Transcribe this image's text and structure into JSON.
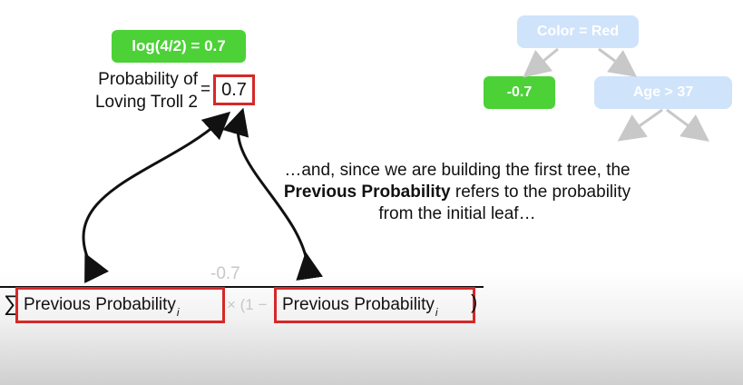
{
  "badge": {
    "log_text": "log(4/2) = 0.7"
  },
  "equation": {
    "prob_label_line1": "Probability of",
    "prob_label_line2": "Loving Troll 2",
    "equals": "=",
    "prob_value": "0.7"
  },
  "tree": {
    "root_label": "Color = Red",
    "leaf_value": "-0.7",
    "right_node_label": "Age > 37"
  },
  "caption": {
    "part1": "…and, since we are building the first tree, the ",
    "bold": "Previous Probability",
    "part2": " refers to the probability from the initial leaf…"
  },
  "formula": {
    "faded_numerator": "-0.7",
    "sigma": "∑",
    "open_bracket": "[",
    "term_left": "Previous Probability",
    "term_left_sub": "i",
    "faded_middle": "× (1 −",
    "term_right": "Previous Probability",
    "term_right_sub": "i",
    "close_paren": ")"
  },
  "colors": {
    "green": "#4cd137",
    "light_blue": "#cfe3fb",
    "red_outline": "#d62828",
    "arrow_gray": "#c8c8c8"
  }
}
